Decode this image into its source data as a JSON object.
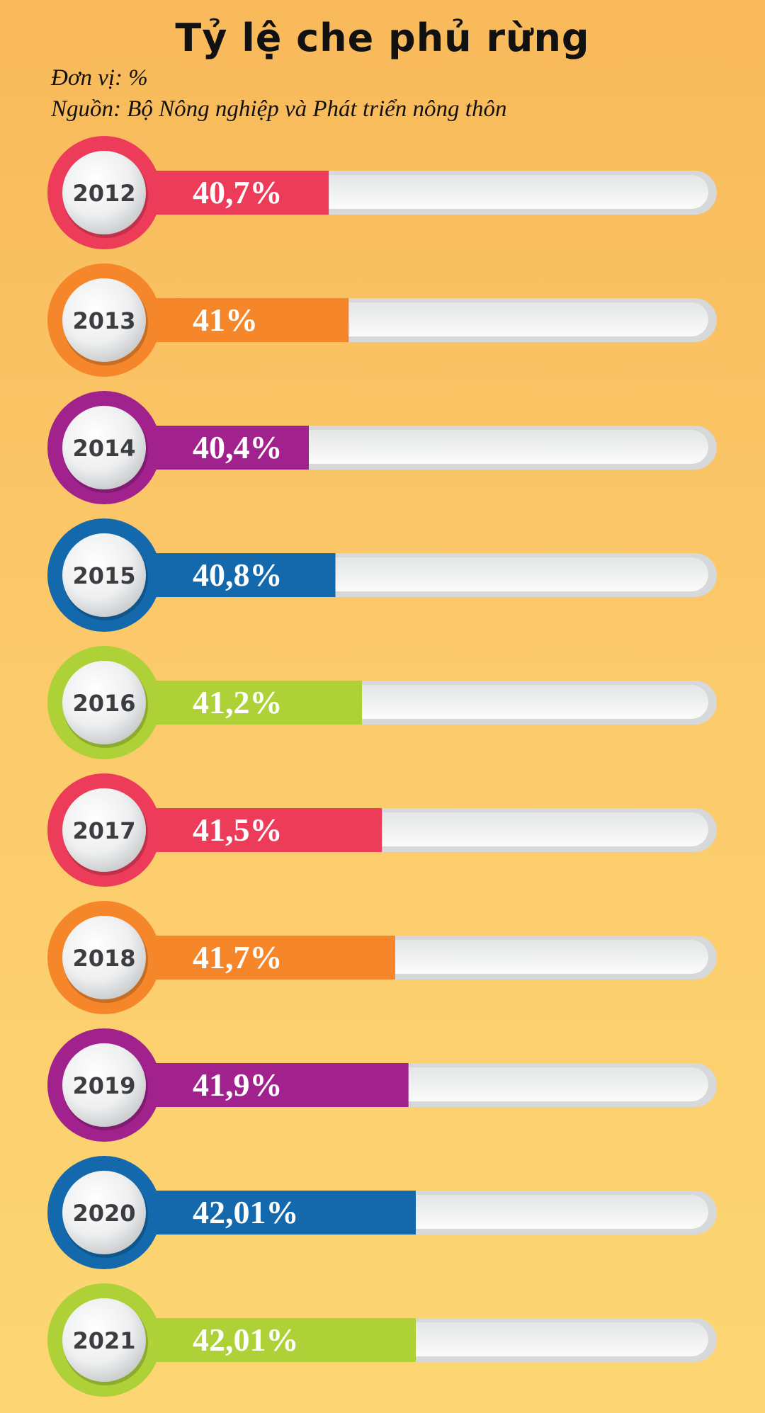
{
  "title": "Tỷ lệ che phủ rừng",
  "unit_label": "Đơn vị: %",
  "source_label": "Nguồn: Bộ Nông nghiệp và Phát triển nông thôn",
  "chart_data": {
    "type": "bar",
    "orientation": "horizontal",
    "title": "Tỷ lệ che phủ rừng",
    "unit": "%",
    "categories": [
      "2012",
      "2013",
      "2014",
      "2015",
      "2016",
      "2017",
      "2018",
      "2019",
      "2020",
      "2021"
    ],
    "values": [
      40.7,
      41,
      40.4,
      40.8,
      41.2,
      41.5,
      41.7,
      41.9,
      42.01,
      42.01
    ],
    "value_labels": [
      "40,7%",
      "41%",
      "40,4%",
      "40,8%",
      "41,2%",
      "41,5%",
      "41,7%",
      "41,9%",
      "42,01%",
      "42,01%"
    ],
    "colors": [
      "#ed3c5a",
      "#f5862a",
      "#a2228d",
      "#1369ab",
      "#add136",
      "#ed3c5a",
      "#f5862a",
      "#a2228d",
      "#1369ab",
      "#add136"
    ],
    "track_color": "#ebedee",
    "grid": false,
    "legend": "none"
  }
}
